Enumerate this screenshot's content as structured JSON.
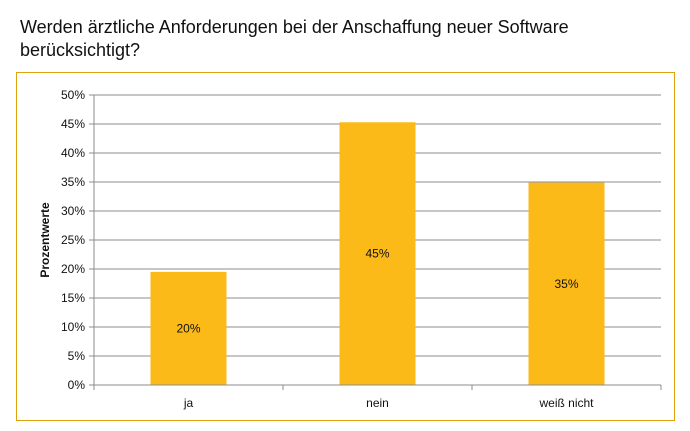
{
  "title": "Werden ärztliche Anforderungen bei der Anschaffung neuer Software berücksichtigt?",
  "colors": {
    "bar": "#FBBA17",
    "frame": "#E0A20C",
    "grid": "#8C8C8C"
  },
  "chart_data": {
    "type": "bar",
    "title": "Werden ärztliche Anforderungen bei der Anschaffung neuer Software berücksichtigt?",
    "xlabel": "",
    "ylabel": "Prozentwerte",
    "categories": [
      "ja",
      "nein",
      "weiß nicht"
    ],
    "values": [
      19.5,
      45.3,
      34.9
    ],
    "data_labels": [
      "20%",
      "45%",
      "35%"
    ],
    "ylim": [
      0,
      50
    ],
    "y_ticks": [
      0,
      5,
      10,
      15,
      20,
      25,
      30,
      35,
      40,
      45,
      50
    ],
    "y_tick_labels": [
      "0%",
      "5%",
      "10%",
      "15%",
      "20%",
      "25%",
      "30%",
      "35%",
      "40%",
      "45%",
      "50%"
    ],
    "grid": true,
    "legend": "none"
  }
}
